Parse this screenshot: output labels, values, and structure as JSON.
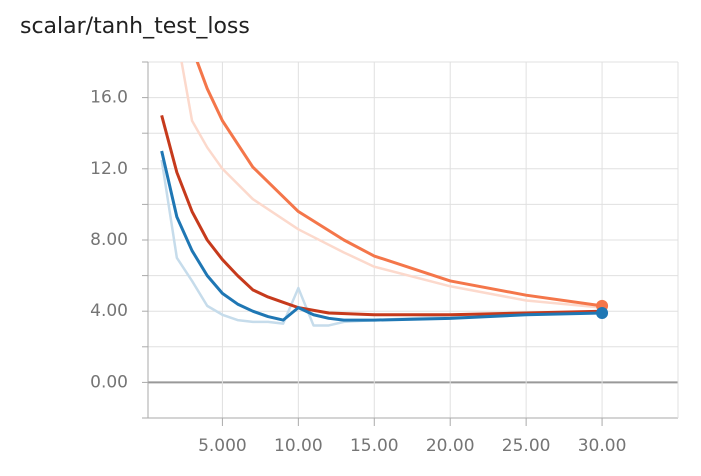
{
  "chart_data": {
    "type": "line",
    "title": "scalar/tanh_test_loss",
    "xlim": [
      0.1,
      35
    ],
    "ylim": [
      -2,
      18
    ],
    "xticks": [
      {
        "value": 5,
        "label": "5.000"
      },
      {
        "value": 10,
        "label": "10.00"
      },
      {
        "value": 15,
        "label": "15.00"
      },
      {
        "value": 20,
        "label": "20.00"
      },
      {
        "value": 25,
        "label": "25.00"
      },
      {
        "value": 30,
        "label": "30.00"
      }
    ],
    "yticks": [
      {
        "value": 0,
        "label": "0.00"
      },
      {
        "value": 4,
        "label": "4.00"
      },
      {
        "value": 8,
        "label": "8.00"
      },
      {
        "value": 12,
        "label": "12.0"
      },
      {
        "value": 16,
        "label": "16.0"
      }
    ],
    "yminorticks": [
      -2,
      2,
      6,
      10,
      14,
      18
    ],
    "grid": true,
    "series": [
      {
        "color": "#fcd9cc",
        "width": 2.5,
        "x": [
          2,
          3,
          4,
          5,
          7,
          10,
          13,
          15,
          20,
          25,
          30
        ],
        "values": [
          19.5,
          14.7,
          13.2,
          12.0,
          10.3,
          8.6,
          7.3,
          6.5,
          5.4,
          4.6,
          4.2
        ]
      },
      {
        "color": "#c6dceb",
        "width": 2.5,
        "x": [
          1,
          2,
          3,
          4,
          5,
          6,
          7,
          8,
          9,
          10,
          11,
          12,
          13,
          15,
          20,
          25,
          30
        ],
        "values": [
          12.5,
          7.0,
          5.7,
          4.3,
          3.8,
          3.5,
          3.4,
          3.4,
          3.3,
          5.3,
          3.2,
          3.2,
          3.4,
          3.5,
          3.7,
          3.8,
          4.0
        ]
      },
      {
        "color": "#f4764a",
        "width": 3,
        "end_marker": true,
        "x": [
          3,
          4,
          5,
          7,
          10,
          13,
          15,
          20,
          25,
          30
        ],
        "values": [
          18.8,
          16.5,
          14.7,
          12.1,
          9.6,
          8.0,
          7.1,
          5.7,
          4.9,
          4.3
        ]
      },
      {
        "color": "#c63a1c",
        "width": 3,
        "x": [
          1,
          2,
          3,
          4,
          5,
          6,
          7,
          8,
          9,
          10,
          12,
          15,
          20,
          25,
          30
        ],
        "values": [
          15.0,
          11.8,
          9.6,
          8.0,
          6.9,
          6.0,
          5.2,
          4.8,
          4.5,
          4.2,
          3.9,
          3.8,
          3.8,
          3.9,
          4.0
        ]
      },
      {
        "color": "#1f77b4",
        "width": 3,
        "end_marker": true,
        "x": [
          1,
          2,
          3,
          4,
          5,
          6,
          7,
          8,
          9,
          10,
          11,
          12,
          13,
          15,
          20,
          25,
          30
        ],
        "values": [
          13.0,
          9.3,
          7.4,
          6.0,
          5.0,
          4.4,
          4.0,
          3.7,
          3.5,
          4.2,
          3.8,
          3.6,
          3.5,
          3.5,
          3.6,
          3.8,
          3.9
        ]
      }
    ]
  }
}
